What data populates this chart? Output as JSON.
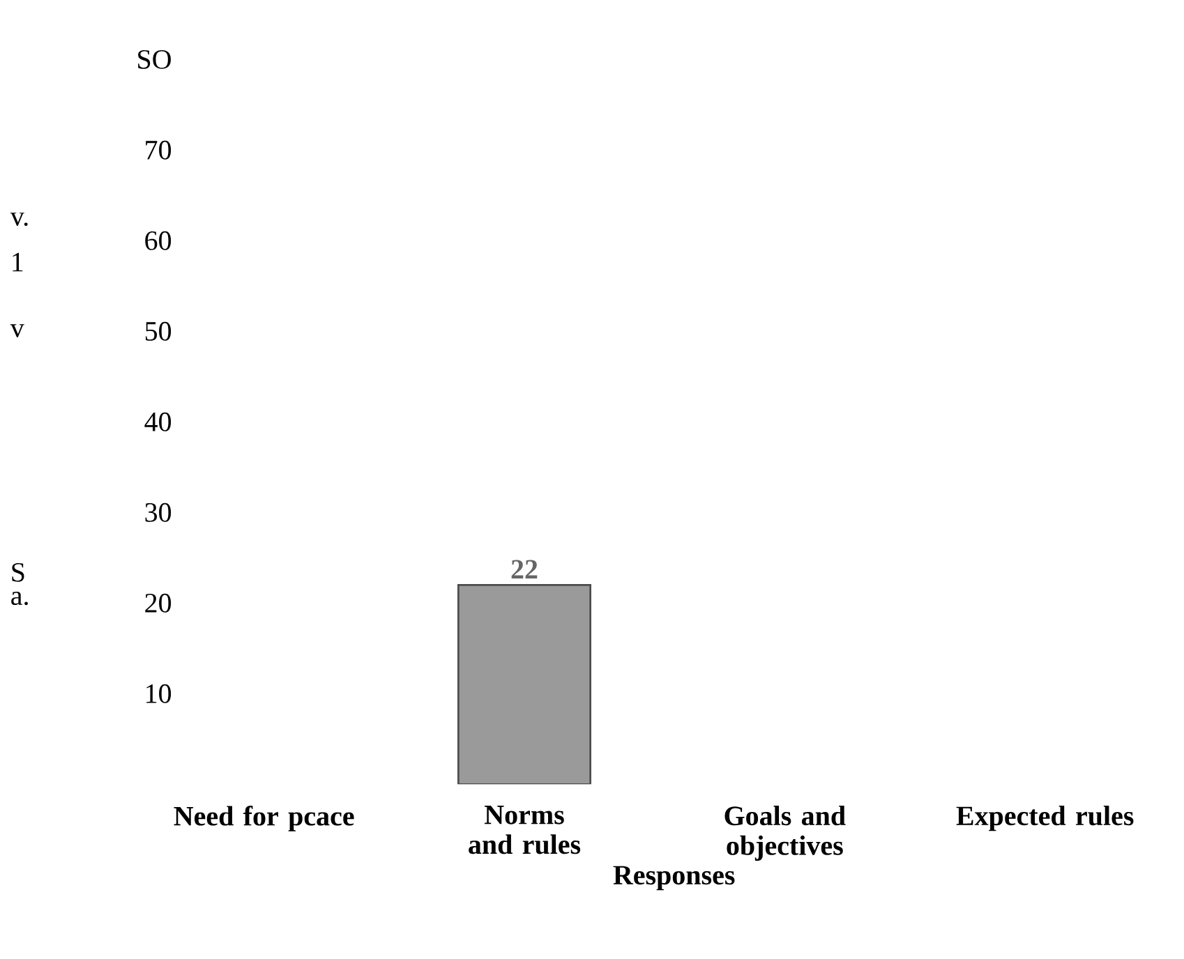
{
  "chart_data": {
    "type": "bar",
    "xlabel": "Responses",
    "categories": [
      "Need for pcace",
      "Norms and rules",
      "Goals and objectives",
      "Expected rules"
    ],
    "values": [
      null,
      22,
      null,
      null
    ],
    "color": "#9a9a9a",
    "data_labels": true,
    "ylim": [
      0,
      80
    ],
    "yticks": [
      10,
      20,
      30,
      40,
      50,
      60,
      70,
      {
        "value": 80,
        "label": "SO"
      }
    ],
    "annotations": [
      "v.",
      "1",
      "v",
      "S",
      "a."
    ]
  }
}
